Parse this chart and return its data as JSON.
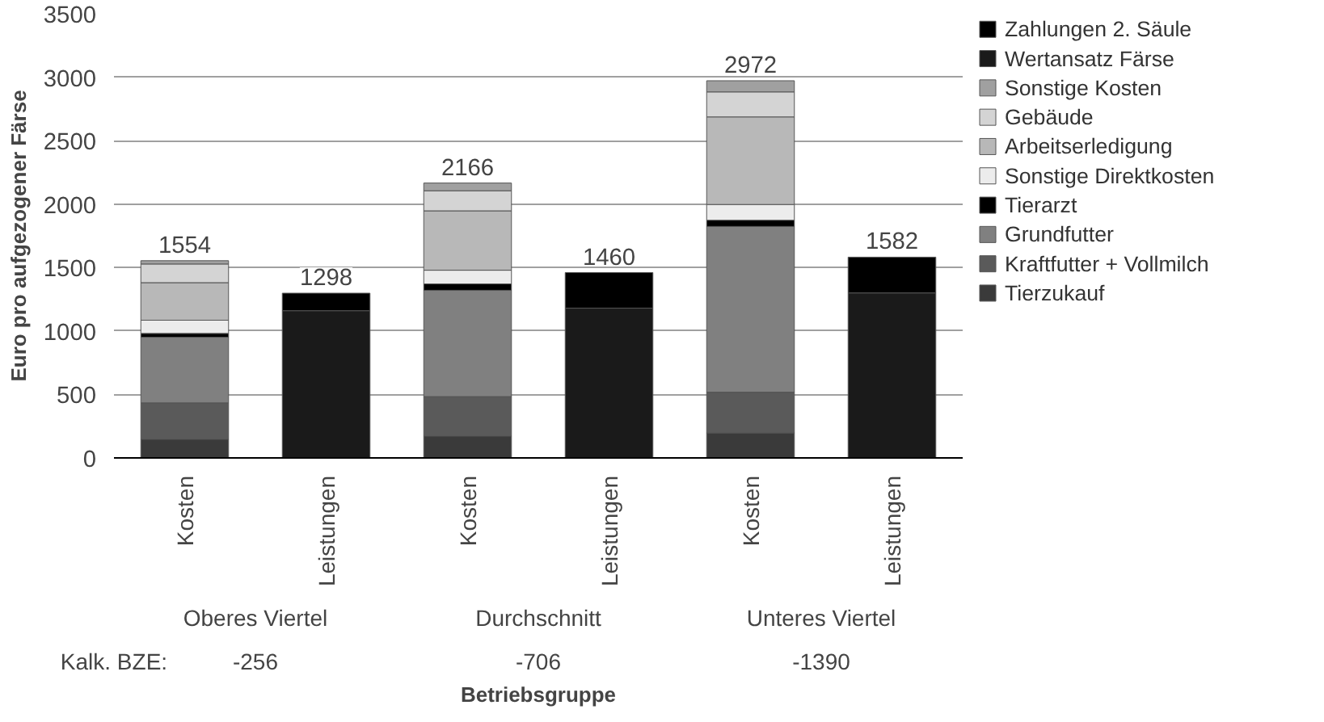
{
  "chart_data": {
    "type": "bar",
    "stacked": true,
    "xlabel": "Betriebsgruppe",
    "ylabel": "Euro pro aufgezogener Färse",
    "categories": [
      "Kosten",
      "Leistungen",
      "Kosten",
      "Leistungen",
      "Kosten",
      "Leistungen"
    ],
    "series": [
      {
        "name": "Tierzukauf",
        "color": "#3a3a3a",
        "values": [
          148,
          null,
          173,
          null,
          197,
          null
        ]
      },
      {
        "name": "Kraftfutter + Vollmilch",
        "color": "#5a5a5a",
        "values": [
          286,
          null,
          310,
          null,
          321,
          null
        ]
      },
      {
        "name": "Grundfutter",
        "color": "#808080",
        "values": [
          517,
          null,
          838,
          null,
          1306,
          null
        ]
      },
      {
        "name": "Tierarzt",
        "color": "#000000",
        "values": [
          30,
          null,
          50,
          null,
          49,
          null
        ]
      },
      {
        "name": "Sonstige Direktkosten",
        "color": "#ececec",
        "values": [
          104,
          null,
          108,
          null,
          124,
          null
        ]
      },
      {
        "name": "Arbeitserledigung",
        "color": "#b8b8b8",
        "values": [
          296,
          null,
          468,
          null,
          690,
          null
        ]
      },
      {
        "name": "Gebäude",
        "color": "#d4d4d4",
        "values": [
          147,
          null,
          158,
          null,
          197,
          null
        ]
      },
      {
        "name": "Sonstige Kosten",
        "color": "#a0a0a0",
        "values": [
          26,
          null,
          61,
          null,
          88,
          null
        ]
      },
      {
        "name": "Wertansatz Färse",
        "color": "#1a1a1a",
        "values": [
          null,
          1160,
          null,
          1180,
          null,
          1300
        ]
      },
      {
        "name": "Zahlungen 2. Säule",
        "color": "#000000",
        "values": [
          null,
          138,
          null,
          280,
          null,
          282
        ]
      }
    ],
    "totals": [
      "1554",
      "1298",
      "2166",
      "1460",
      "2972",
      "1582"
    ],
    "ylim": [
      0,
      3500
    ],
    "yticks": [
      0,
      500,
      1000,
      1500,
      2000,
      2500,
      3000,
      3500
    ],
    "grid": "y",
    "legend": "right",
    "annotations": [
      "Oberes Viertel",
      "Durchschnitt",
      "Unteres Viertel",
      "Kalk. BZE:",
      "-256",
      "-706",
      "-1390"
    ]
  }
}
